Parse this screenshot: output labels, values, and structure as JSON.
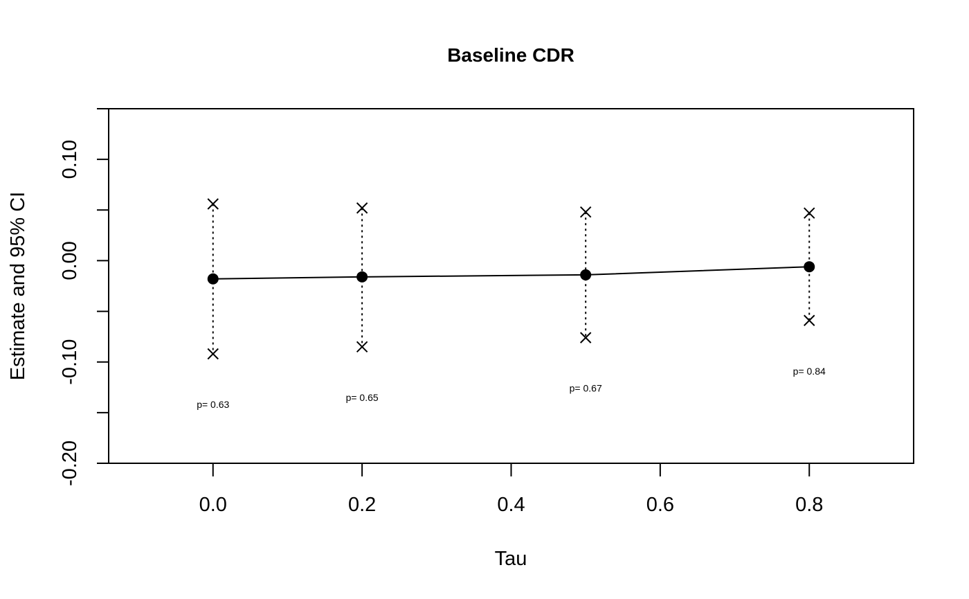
{
  "chart_data": {
    "type": "line",
    "title": "Baseline CDR",
    "xlabel": "Tau",
    "ylabel": "Estimate and 95% CI",
    "xlim": [
      -0.14,
      0.94
    ],
    "ylim": [
      -0.2,
      0.15
    ],
    "x_ticks": [
      "0.0",
      "0.2",
      "0.4",
      "0.6",
      "0.8"
    ],
    "x_tick_values": [
      0.0,
      0.2,
      0.4,
      0.6,
      0.8
    ],
    "y_ticks": [
      "-0.20",
      "-0.10",
      "0.00",
      "0.10"
    ],
    "y_tick_values": [
      -0.2,
      -0.1,
      0.0,
      0.1
    ],
    "y_minor_tick_values": [
      -0.15,
      -0.05,
      0.05,
      0.15
    ],
    "grid": false,
    "x": [
      0.0,
      0.2,
      0.5,
      0.8
    ],
    "estimate": [
      -0.018,
      -0.016,
      -0.014,
      -0.006
    ],
    "ci_upper": [
      0.056,
      0.052,
      0.048,
      0.047
    ],
    "ci_lower": [
      -0.092,
      -0.085,
      -0.076,
      -0.059
    ],
    "p_labels": [
      "p= 0.63",
      "p= 0.65",
      "p= 0.67",
      "p= 0.84"
    ],
    "p_label_y": [
      -0.142,
      -0.135,
      -0.126,
      -0.109
    ]
  }
}
